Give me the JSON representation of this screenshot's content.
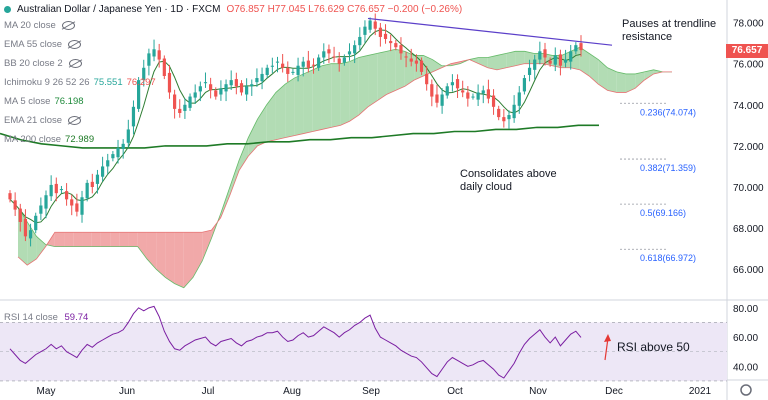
{
  "header": {
    "symbol": "Australian Dollar / Japanese Yen · 1D · FXCM",
    "ohlc": "O76.857 H77.045 L76.629 C76.657 −0.200 (−0.26%)"
  },
  "legend": [
    {
      "label": "MA 20 close",
      "value": "",
      "color": "#787b86",
      "hidden": true
    },
    {
      "label": "EMA 55 close",
      "value": "",
      "color": "#787b86",
      "hidden": true
    },
    {
      "label": "BB 20 close 2",
      "value": "",
      "color": "#787b86",
      "hidden": true
    },
    {
      "label": "Ichimoku 9 26 52 26",
      "value": "75.551",
      "value2": "76.297",
      "color": "#26a69a",
      "color2": "#ef5350",
      "hidden": false
    },
    {
      "label": "MA 5 close",
      "value": "76.198",
      "color": "#1e8a3a",
      "hidden": false
    },
    {
      "label": "EMA 21 close",
      "value": "",
      "color": "#787b86",
      "hidden": true
    },
    {
      "label": "MA 200 close",
      "value": "72.989",
      "color": "#1e7a26",
      "hidden": false
    }
  ],
  "annotations": {
    "trendline": "Pauses at trendline\nresistance",
    "cloud": "Consolidates above\ndaily cloud",
    "rsi": "RSI above 50"
  },
  "price_tag": "76.657",
  "rsi_label": "RSI 14 close",
  "rsi_value": "59.74",
  "colors": {
    "up": "#26a69a",
    "down": "#ef5350",
    "cloud_up": "#a5d6a7",
    "cloud_down": "#ef9a9a",
    "trend": "#5b3fc9",
    "ma200": "#1e7a26",
    "rsi": "#7b1fa2",
    "rsi_band": "#ede7f6"
  },
  "chart_data": [
    {
      "type": "candlestick",
      "title": "Australian Dollar / Japanese Yen · 1D · FXCM",
      "x_labels": [
        "May",
        "Jun",
        "Jul",
        "Aug",
        "Sep",
        "Oct",
        "Nov",
        "Dec",
        "2021"
      ],
      "y_ticks": [
        66.0,
        68.0,
        70.0,
        72.0,
        74.0,
        76.0,
        78.0
      ],
      "ylim": [
        64.6,
        79.0
      ],
      "close": [
        69.4,
        68.9,
        68.3,
        67.6,
        67.9,
        68.6,
        69.1,
        69.6,
        70.1,
        69.7,
        69.9,
        69.4,
        69.1,
        68.8,
        69.5,
        70.2,
        70.0,
        70.6,
        71.0,
        71.3,
        71.6,
        71.9,
        72.1,
        72.8,
        73.9,
        75.2,
        75.8,
        76.5,
        76.7,
        76.2,
        75.4,
        74.6,
        73.8,
        73.6,
        74.0,
        74.4,
        74.6,
        74.9,
        75.1,
        74.7,
        74.4,
        74.8,
        75.0,
        75.2,
        74.9,
        74.6,
        74.9,
        75.0,
        75.3,
        75.5,
        75.8,
        75.9,
        76.1,
        75.8,
        75.5,
        75.6,
        75.9,
        76.1,
        75.8,
        75.9,
        76.3,
        76.6,
        76.5,
        76.3,
        76.0,
        76.3,
        76.6,
        76.9,
        77.3,
        77.8,
        78.1,
        77.7,
        77.3,
        77.2,
        77.0,
        76.8,
        76.5,
        76.3,
        76.1,
        76.0,
        75.6,
        75.0,
        74.4,
        74.1,
        74.5,
        74.9,
        75.1,
        74.8,
        74.6,
        74.3,
        74.4,
        74.6,
        74.7,
        74.3,
        73.9,
        73.4,
        73.2,
        73.5,
        74.0,
        74.6,
        75.3,
        75.8,
        76.2,
        76.6,
        76.3,
        76.0,
        76.4,
        75.9,
        76.2,
        76.6,
        76.9,
        76.66
      ],
      "ichimoku_span_a": [
        69.0,
        68.3,
        67.6,
        67.2,
        67.1,
        67.1,
        67.1,
        67.1,
        67.1,
        67.1,
        67.1,
        67.1,
        67.1,
        67.1,
        66.5,
        66.0,
        65.6,
        65.3,
        65.1,
        65.6,
        66.4,
        67.5,
        68.7,
        70.0,
        71.3,
        72.4,
        73.3,
        74.0,
        74.6,
        75.0,
        75.3,
        75.5,
        75.7,
        75.9,
        76.0,
        76.0,
        76.1,
        76.3,
        76.4,
        76.5,
        76.6,
        76.7,
        76.6,
        76.4,
        76.4,
        76.2,
        75.9,
        75.9,
        76.0,
        76.2,
        76.3,
        76.3,
        76.4,
        76.5,
        76.6,
        76.6,
        76.5,
        76.5,
        76.4,
        76.4,
        76.6,
        76.8,
        76.5,
        76.2,
        75.8,
        75.6,
        75.5,
        75.5,
        75.6,
        75.7,
        75.6,
        75.6
      ],
      "ichimoku_span_b": [
        66.6,
        66.2,
        66.5,
        67.1,
        67.8,
        67.8,
        67.8,
        67.8,
        67.8,
        67.8,
        67.8,
        67.8,
        67.8,
        67.8,
        67.8,
        67.8,
        67.8,
        67.8,
        67.8,
        67.8,
        67.8,
        67.9,
        68.5,
        69.6,
        70.8,
        71.5,
        72.0,
        72.2,
        72.3,
        72.4,
        72.5,
        72.6,
        72.7,
        72.8,
        72.9,
        73.0,
        73.2,
        73.5,
        73.9,
        74.2,
        74.5,
        74.7,
        74.9,
        75.2,
        75.4,
        75.6,
        75.8,
        76.0,
        76.1,
        76.2,
        76.0,
        75.8,
        75.7,
        75.8,
        75.9,
        76.0,
        76.0,
        76.0,
        75.9,
        75.8,
        75.8,
        75.7,
        75.4,
        75.0,
        74.7,
        74.6,
        74.6,
        74.8,
        75.2,
        75.5,
        75.6,
        75.6
      ],
      "ma200": [
        72.6,
        72.3,
        72.1,
        72.0,
        71.9,
        71.9,
        71.9,
        71.9,
        72.0,
        72.0,
        72.0,
        72.1,
        72.1,
        72.2,
        72.2,
        72.3,
        72.3,
        72.4,
        72.4,
        72.5,
        72.6,
        72.6,
        72.7,
        72.7,
        72.8,
        72.8,
        72.9,
        72.9,
        73.0,
        73.0
      ],
      "fib_levels": [
        {
          "label": "0.236(74.074)",
          "value": 74.074
        },
        {
          "label": "0.382(71.359)",
          "value": 71.359
        },
        {
          "label": "0.5(69.166)",
          "value": 69.166
        },
        {
          "label": "0.618(66.972)",
          "value": 66.972
        }
      ],
      "trendline": {
        "from": 78.2,
        "to": 76.9
      }
    },
    {
      "type": "line",
      "title": "RSI 14 close",
      "y_ticks": [
        40.0,
        60.0,
        80.0
      ],
      "ylim": [
        32,
        84
      ],
      "band": [
        30,
        70
      ],
      "values": [
        52,
        48,
        44,
        42,
        45,
        48,
        50,
        52,
        55,
        52,
        54,
        50,
        48,
        46,
        51,
        55,
        53,
        56,
        58,
        60,
        62,
        63,
        65,
        70,
        76,
        80,
        78,
        80,
        81,
        74,
        64,
        57,
        52,
        51,
        54,
        56,
        58,
        59,
        60,
        56,
        54,
        57,
        58,
        59,
        56,
        54,
        57,
        58,
        60,
        61,
        63,
        63,
        64,
        60,
        57,
        58,
        61,
        63,
        60,
        61,
        64,
        67,
        65,
        63,
        60,
        63,
        65,
        68,
        70,
        73,
        75,
        66,
        60,
        58,
        56,
        54,
        51,
        49,
        47,
        46,
        43,
        39,
        35,
        33,
        38,
        43,
        46,
        44,
        42,
        40,
        41,
        43,
        44,
        41,
        38,
        34,
        32,
        37,
        42,
        49,
        55,
        59,
        62,
        65,
        60,
        56,
        60,
        54,
        58,
        62,
        64,
        59.74
      ]
    }
  ]
}
